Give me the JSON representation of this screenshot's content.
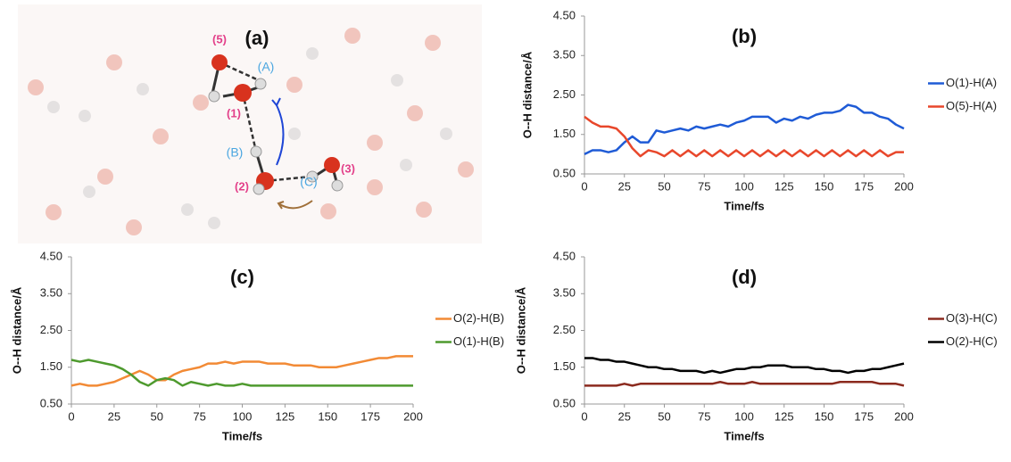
{
  "molecule_panel": {
    "title": "(a)",
    "atom_labels": [
      "(5)",
      "(1)",
      "(2)",
      "(3)"
    ],
    "hydrogen_labels": [
      "(A)",
      "(B)",
      "(C)"
    ]
  },
  "chart_data": [
    {
      "type": "line",
      "title": "(b)",
      "x_label": "Time/fs",
      "y_label": "O--H distance/Å",
      "legend": "right",
      "x": [
        0,
        5,
        10,
        15,
        20,
        25,
        30,
        35,
        40,
        45,
        50,
        55,
        60,
        65,
        70,
        75,
        80,
        85,
        90,
        95,
        100,
        105,
        110,
        115,
        120,
        125,
        130,
        135,
        140,
        145,
        150,
        155,
        160,
        165,
        170,
        175,
        180,
        185,
        190,
        195,
        200
      ],
      "xlim": [
        0,
        200
      ],
      "xticks": [
        0,
        25,
        50,
        75,
        100,
        125,
        150,
        175,
        200
      ],
      "ylim": [
        0.5,
        4.5
      ],
      "yticks": [
        {
          "value": 0.5,
          "label": "0.50"
        },
        {
          "value": 1.5,
          "label": "1.50"
        },
        {
          "value": 2.5,
          "label": "2.50"
        },
        {
          "value": 3.5,
          "label": "3.50"
        },
        {
          "value": 4.5,
          "label": "4.50"
        }
      ],
      "series": [
        {
          "name": "O(1)-H(A)",
          "color": "#1f5bd6",
          "values": [
            1.0,
            1.1,
            1.1,
            1.05,
            1.1,
            1.3,
            1.45,
            1.3,
            1.3,
            1.6,
            1.55,
            1.6,
            1.65,
            1.6,
            1.7,
            1.65,
            1.7,
            1.75,
            1.7,
            1.8,
            1.85,
            1.95,
            1.95,
            1.95,
            1.8,
            1.9,
            1.85,
            1.95,
            1.9,
            2.0,
            2.05,
            2.05,
            2.1,
            2.25,
            2.2,
            2.05,
            2.05,
            1.95,
            1.9,
            1.75,
            1.65
          ]
        },
        {
          "name": "O(5)-H(A)",
          "color": "#e8472b",
          "values": [
            1.95,
            1.8,
            1.7,
            1.7,
            1.65,
            1.45,
            1.15,
            0.95,
            1.1,
            1.05,
            0.95,
            1.1,
            0.95,
            1.1,
            0.95,
            1.1,
            0.95,
            1.1,
            0.95,
            1.1,
            0.95,
            1.1,
            0.95,
            1.1,
            0.95,
            1.1,
            0.95,
            1.1,
            0.95,
            1.1,
            0.95,
            1.1,
            0.95,
            1.1,
            0.95,
            1.1,
            0.95,
            1.1,
            0.95,
            1.05,
            1.05
          ]
        }
      ]
    },
    {
      "type": "line",
      "title": "(c)",
      "x_label": "Time/fs",
      "y_label": "O--H distance/Å",
      "legend": "right",
      "x": [
        0,
        5,
        10,
        15,
        20,
        25,
        30,
        35,
        40,
        45,
        50,
        55,
        60,
        65,
        70,
        75,
        80,
        85,
        90,
        95,
        100,
        105,
        110,
        115,
        120,
        125,
        130,
        135,
        140,
        145,
        150,
        155,
        160,
        165,
        170,
        175,
        180,
        185,
        190,
        195,
        200
      ],
      "xlim": [
        0,
        200
      ],
      "xticks": [
        0,
        25,
        50,
        75,
        100,
        125,
        150,
        175,
        200
      ],
      "ylim": [
        0.5,
        4.5
      ],
      "yticks": [
        {
          "value": 0.5,
          "label": "0.50"
        },
        {
          "value": 1.5,
          "label": "1.50"
        },
        {
          "value": 2.5,
          "label": "2.50"
        },
        {
          "value": 3.5,
          "label": "3.50"
        },
        {
          "value": 4.5,
          "label": "4.50"
        }
      ],
      "series": [
        {
          "name": "O(2)-H(B)",
          "color": "#f28a35",
          "values": [
            1.0,
            1.05,
            1.0,
            1.0,
            1.05,
            1.1,
            1.2,
            1.3,
            1.4,
            1.3,
            1.15,
            1.15,
            1.3,
            1.4,
            1.45,
            1.5,
            1.6,
            1.6,
            1.65,
            1.6,
            1.65,
            1.65,
            1.65,
            1.6,
            1.6,
            1.6,
            1.55,
            1.55,
            1.55,
            1.5,
            1.5,
            1.5,
            1.55,
            1.6,
            1.65,
            1.7,
            1.75,
            1.75,
            1.8,
            1.8,
            1.8
          ]
        },
        {
          "name": "O(1)-H(B)",
          "color": "#4e9a2e",
          "values": [
            1.7,
            1.65,
            1.7,
            1.65,
            1.6,
            1.55,
            1.45,
            1.3,
            1.1,
            1.0,
            1.15,
            1.2,
            1.15,
            1.0,
            1.1,
            1.05,
            1.0,
            1.05,
            1.0,
            1.0,
            1.05,
            1.0,
            1.0,
            1.0,
            1.0,
            1.0,
            1.0,
            1.0,
            1.0,
            1.0,
            1.0,
            1.0,
            1.0,
            1.0,
            1.0,
            1.0,
            1.0,
            1.0,
            1.0,
            1.0,
            1.0
          ]
        }
      ]
    },
    {
      "type": "line",
      "title": "(d)",
      "x_label": "Time/fs",
      "y_label": "O--H distance/Å",
      "legend": "right",
      "x": [
        0,
        5,
        10,
        15,
        20,
        25,
        30,
        35,
        40,
        45,
        50,
        55,
        60,
        65,
        70,
        75,
        80,
        85,
        90,
        95,
        100,
        105,
        110,
        115,
        120,
        125,
        130,
        135,
        140,
        145,
        150,
        155,
        160,
        165,
        170,
        175,
        180,
        185,
        190,
        195,
        200
      ],
      "xlim": [
        0,
        200
      ],
      "xticks": [
        0,
        25,
        50,
        75,
        100,
        125,
        150,
        175,
        200
      ],
      "ylim": [
        0.5,
        4.5
      ],
      "yticks": [
        {
          "value": 0.5,
          "label": "0.50"
        },
        {
          "value": 1.5,
          "label": "1.50"
        },
        {
          "value": 2.5,
          "label": "2.50"
        },
        {
          "value": 3.5,
          "label": "3.50"
        },
        {
          "value": 4.5,
          "label": "4.50"
        }
      ],
      "series": [
        {
          "name": "O(3)-H(C)",
          "color": "#8b2a1e",
          "values": [
            1.0,
            1.0,
            1.0,
            1.0,
            1.0,
            1.05,
            1.0,
            1.05,
            1.05,
            1.05,
            1.05,
            1.05,
            1.05,
            1.05,
            1.05,
            1.05,
            1.05,
            1.1,
            1.05,
            1.05,
            1.05,
            1.1,
            1.05,
            1.05,
            1.05,
            1.05,
            1.05,
            1.05,
            1.05,
            1.05,
            1.05,
            1.05,
            1.1,
            1.1,
            1.1,
            1.1,
            1.1,
            1.05,
            1.05,
            1.05,
            1.0
          ]
        },
        {
          "name": "O(2)-H(C)",
          "color": "#000000",
          "values": [
            1.75,
            1.75,
            1.7,
            1.7,
            1.65,
            1.65,
            1.6,
            1.55,
            1.5,
            1.5,
            1.45,
            1.45,
            1.4,
            1.4,
            1.4,
            1.35,
            1.4,
            1.35,
            1.4,
            1.45,
            1.45,
            1.5,
            1.5,
            1.55,
            1.55,
            1.55,
            1.5,
            1.5,
            1.5,
            1.45,
            1.45,
            1.4,
            1.4,
            1.35,
            1.4,
            1.4,
            1.45,
            1.45,
            1.5,
            1.55,
            1.6
          ]
        }
      ]
    }
  ]
}
